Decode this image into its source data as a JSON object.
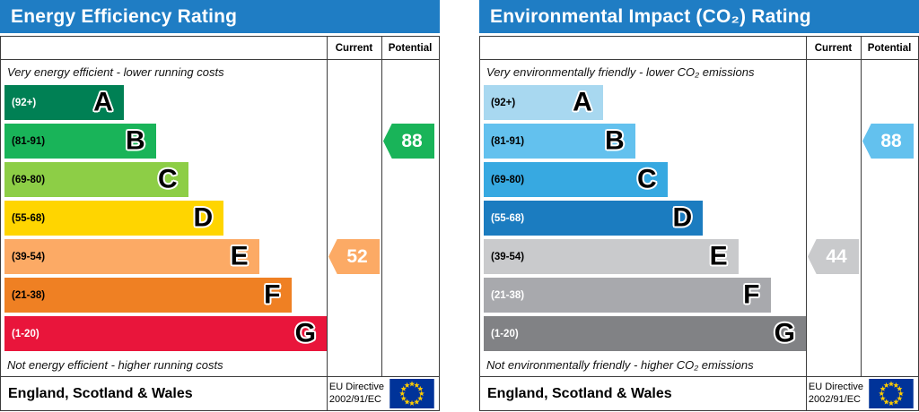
{
  "eu_flag": {
    "background": "#003399",
    "stars": "#ffcc00"
  },
  "charts": [
    {
      "title": "Energy Efficiency Rating",
      "header_color": "#1f7dc4",
      "columns": {
        "current": "Current",
        "potential": "Potential"
      },
      "top_caption": "Very energy efficient - lower running costs",
      "bottom_caption": "Not energy efficient - higher running costs",
      "bands": [
        {
          "range": "(92+)",
          "letter": "A",
          "color": "#008054",
          "width_pct": 37,
          "range_text_color": "#ffffff"
        },
        {
          "range": "(81-91)",
          "letter": "B",
          "color": "#19b459",
          "width_pct": 47,
          "range_text_color": "#000000"
        },
        {
          "range": "(69-80)",
          "letter": "C",
          "color": "#8dce46",
          "width_pct": 57,
          "range_text_color": "#000000"
        },
        {
          "range": "(55-68)",
          "letter": "D",
          "color": "#ffd500",
          "width_pct": 68,
          "range_text_color": "#000000"
        },
        {
          "range": "(39-54)",
          "letter": "E",
          "color": "#fcaa65",
          "width_pct": 79,
          "range_text_color": "#000000"
        },
        {
          "range": "(21-38)",
          "letter": "F",
          "color": "#ef8023",
          "width_pct": 89,
          "range_text_color": "#000000"
        },
        {
          "range": "(1-20)",
          "letter": "G",
          "color": "#e9153b",
          "width_pct": 100,
          "range_text_color": "#ffffff"
        }
      ],
      "current": {
        "value": "52",
        "band_index": 4,
        "color": "#fcaa65"
      },
      "potential": {
        "value": "88",
        "band_index": 1,
        "color": "#19b459"
      },
      "footer": {
        "region": "England, Scotland & Wales",
        "directive_line1": "EU Directive",
        "directive_line2": "2002/91/EC"
      }
    },
    {
      "title": "Environmental Impact (CO₂) Rating",
      "header_color": "#1f7dc4",
      "columns": {
        "current": "Current",
        "potential": "Potential"
      },
      "top_caption": "Very environmentally friendly - lower CO₂ emissions",
      "bottom_caption": "Not environmentally friendly - higher CO₂ emissions",
      "bands": [
        {
          "range": "(92+)",
          "letter": "A",
          "color": "#a8d8f0",
          "width_pct": 37,
          "range_text_color": "#000000"
        },
        {
          "range": "(81-91)",
          "letter": "B",
          "color": "#63c1ee",
          "width_pct": 47,
          "range_text_color": "#000000"
        },
        {
          "range": "(69-80)",
          "letter": "C",
          "color": "#37a9e1",
          "width_pct": 57,
          "range_text_color": "#000000"
        },
        {
          "range": "(55-68)",
          "letter": "D",
          "color": "#1b7cc0",
          "width_pct": 68,
          "range_text_color": "#ffffff"
        },
        {
          "range": "(39-54)",
          "letter": "E",
          "color": "#c9cacc",
          "width_pct": 79,
          "range_text_color": "#000000"
        },
        {
          "range": "(21-38)",
          "letter": "F",
          "color": "#a8a9ad",
          "width_pct": 89,
          "range_text_color": "#ffffff"
        },
        {
          "range": "(1-20)",
          "letter": "G",
          "color": "#818285",
          "width_pct": 100,
          "range_text_color": "#ffffff"
        }
      ],
      "current": {
        "value": "44",
        "band_index": 4,
        "color": "#c9cacc"
      },
      "potential": {
        "value": "88",
        "band_index": 1,
        "color": "#63c1ee"
      },
      "footer": {
        "region": "England, Scotland & Wales",
        "directive_line1": "EU Directive",
        "directive_line2": "2002/91/EC"
      }
    }
  ],
  "chart_data": [
    {
      "type": "bar",
      "title": "Energy Efficiency Rating",
      "categories": [
        "A (92+)",
        "B (81-91)",
        "C (69-80)",
        "D (55-68)",
        "E (39-54)",
        "F (21-38)",
        "G (1-20)"
      ],
      "values": [
        37,
        47,
        57,
        68,
        79,
        89,
        100
      ],
      "xlabel": "",
      "ylabel": "",
      "legend": [
        "Current",
        "Potential"
      ],
      "current_rating": 52,
      "current_band": "E",
      "potential_rating": 88,
      "potential_band": "B",
      "footnote": "England, Scotland & Wales — EU Directive 2002/91/EC"
    },
    {
      "type": "bar",
      "title": "Environmental Impact (CO₂) Rating",
      "categories": [
        "A (92+)",
        "B (81-91)",
        "C (69-80)",
        "D (55-68)",
        "E (39-54)",
        "F (21-38)",
        "G (1-20)"
      ],
      "values": [
        37,
        47,
        57,
        68,
        79,
        89,
        100
      ],
      "xlabel": "",
      "ylabel": "",
      "legend": [
        "Current",
        "Potential"
      ],
      "current_rating": 44,
      "current_band": "E",
      "potential_rating": 88,
      "potential_band": "B",
      "footnote": "England, Scotland & Wales — EU Directive 2002/91/EC"
    }
  ]
}
